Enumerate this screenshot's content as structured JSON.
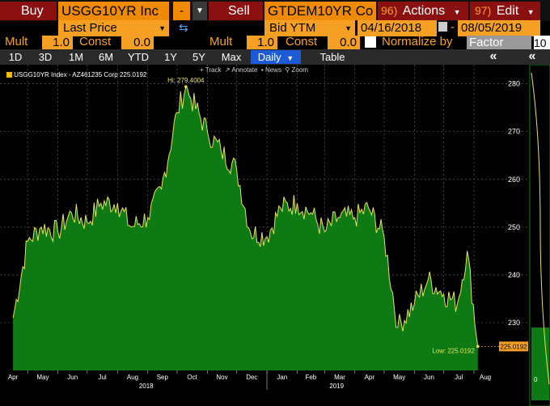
{
  "toolbar": {
    "buy_label": "Buy",
    "buy_ticker": "USGG10YR Inc",
    "dash": "-",
    "sell_label": "Sell",
    "sell_ticker": "GTDEM10YR Co",
    "actions_num": "96)",
    "actions_label": "Actions",
    "edit_num": "97)",
    "edit_label": "Edit"
  },
  "row2": {
    "field1": "Last Price",
    "field2": "Bid YTM",
    "date_from": "04/16/2018",
    "date_to": "08/05/2019"
  },
  "row3": {
    "mult1_label": "Mult",
    "mult1_value": "1.0",
    "const1_label": "Const",
    "const1_value": "0.0",
    "mult2_label": "Mult",
    "mult2_value": "1.0",
    "const2_label": "Const",
    "const2_value": "0.0",
    "normalize_label": "Normalize by",
    "normalize_value": "Factor",
    "extra_value": "10"
  },
  "tabs": [
    "1D",
    "3D",
    "1M",
    "6M",
    "YTD",
    "1Y",
    "5Y",
    "Max"
  ],
  "period_selected": "Daily",
  "table_label": "Table",
  "chart_tools": [
    "Track",
    "Annotate",
    "News",
    "Zoom"
  ],
  "legend_text": "USGG10YR Index - AZ461235 Corp 225.0192",
  "colors": {
    "fill": "#0d7a13",
    "line": "#e8e25a",
    "accent": "#f08a00"
  },
  "chart_data": {
    "type": "area",
    "title": "",
    "xlabel": "",
    "ylabel": "",
    "series": [
      {
        "name": "USGG10YR Index - AZ461235 Corp",
        "x": [
          "2018-04-16",
          "2018-05-01",
          "2018-05-15",
          "2018-06-01",
          "2018-06-15",
          "2018-07-01",
          "2018-07-15",
          "2018-08-01",
          "2018-08-15",
          "2018-09-01",
          "2018-09-15",
          "2018-10-01",
          "2018-10-10",
          "2018-10-15",
          "2018-11-01",
          "2018-11-15",
          "2018-12-01",
          "2018-12-15",
          "2019-01-01",
          "2019-01-15",
          "2019-02-01",
          "2019-02-15",
          "2019-03-01",
          "2019-03-15",
          "2019-04-01",
          "2019-04-15",
          "2019-05-01",
          "2019-05-15",
          "2019-06-01",
          "2019-06-15",
          "2019-07-01",
          "2019-07-15",
          "2019-07-25",
          "2019-08-05"
        ],
        "y": [
          231,
          247,
          250,
          249,
          253,
          251,
          255,
          255,
          250,
          252,
          258,
          274,
          279.4004,
          277,
          270,
          266,
          262,
          249,
          248,
          254,
          255,
          253,
          249,
          252,
          252,
          254,
          248,
          229,
          234,
          239,
          236,
          234,
          245,
          225.0192
        ]
      }
    ],
    "ylim": [
      220,
      284
    ],
    "yticks": [
      230,
      240,
      250,
      260,
      270,
      280
    ],
    "month_labels": [
      "Apr",
      "May",
      "Jun",
      "Jul",
      "Aug",
      "Sep",
      "Oct",
      "Nov",
      "Dec",
      "Jan",
      "Feb",
      "Mar",
      "Apr",
      "May",
      "Jun",
      "Jul",
      "Aug"
    ],
    "year_labels": [
      "2018",
      "2019"
    ],
    "annotations": {
      "hi": "Hi: 279.4004",
      "low": "Low: 225.0192",
      "last_value": "225.0192"
    },
    "grid": true
  },
  "side_panel": {
    "label": "0"
  }
}
